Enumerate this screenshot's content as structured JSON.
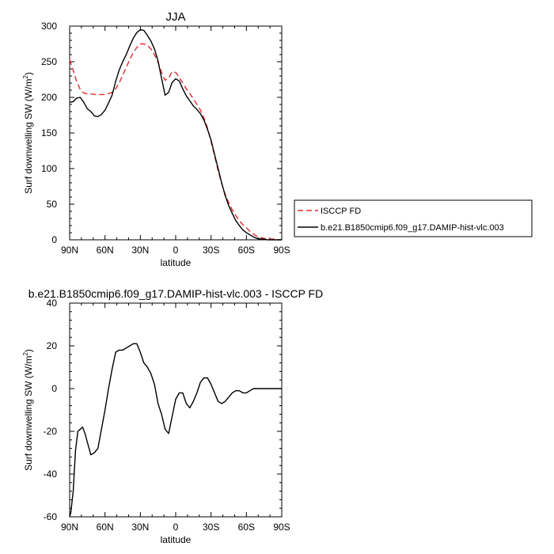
{
  "chart_data": [
    {
      "type": "line",
      "title": "JJA",
      "xlabel": "latitude",
      "ylabel": "Surf downwelling SW (W/m²)",
      "ylabel_base": "Surf downwelling SW (W/m",
      "ylabel_sup": "2",
      "ylabel_end": ")",
      "xlim": [
        90,
        -90
      ],
      "ylim": [
        0,
        300
      ],
      "x_ticks": [
        90,
        60,
        30,
        0,
        -30,
        -60,
        -90
      ],
      "x_tick_labels": [
        "90N",
        "60N",
        "30N",
        "0",
        "30S",
        "60S",
        "90S"
      ],
      "y_ticks": [
        0,
        50,
        100,
        150,
        200,
        250,
        300
      ],
      "y_tick_labels": [
        "0",
        "50",
        "100",
        "150",
        "200",
        "250",
        "300"
      ],
      "legend_position": "right",
      "series": [
        {
          "name": "ISCCP FD",
          "color": "#e8282a",
          "dashed": true,
          "x": [
            90,
            87,
            84,
            81,
            78,
            75,
            72,
            69,
            66,
            63,
            60,
            57,
            54,
            51,
            48,
            45,
            42,
            39,
            36,
            33,
            30,
            27,
            24,
            21,
            18,
            15,
            12,
            9,
            6,
            3,
            0,
            -3,
            -6,
            -9,
            -12,
            -15,
            -18,
            -21,
            -24,
            -27,
            -30,
            -33,
            -36,
            -39,
            -42,
            -45,
            -48,
            -51,
            -54,
            -57,
            -60,
            -63,
            -66,
            -69,
            -72,
            -75,
            -78,
            -81,
            -84,
            -87,
            -90
          ],
          "y": [
            253,
            238,
            222,
            211,
            206,
            205,
            205,
            204,
            204,
            204,
            204,
            205,
            207,
            212,
            220,
            231,
            242,
            253,
            263,
            270,
            275,
            275,
            273,
            268,
            260,
            249,
            235,
            224,
            227,
            236,
            235,
            228,
            220,
            212,
            205,
            198,
            190,
            182,
            171,
            157,
            138,
            118,
            97,
            79,
            64,
            52,
            42,
            34,
            27,
            21,
            17,
            12,
            8,
            5,
            3,
            2,
            1,
            1,
            1,
            0,
            0
          ]
        },
        {
          "name": "b.e21.B1850cmip6.f09_g17.DAMIP-hist-vlc.003",
          "color": "#000000",
          "dashed": false,
          "x": [
            90,
            87,
            84,
            81,
            78,
            75,
            72,
            69,
            66,
            63,
            60,
            57,
            54,
            51,
            48,
            45,
            42,
            39,
            36,
            33,
            30,
            27,
            24,
            21,
            18,
            15,
            12,
            9,
            6,
            3,
            0,
            -3,
            -6,
            -9,
            -12,
            -15,
            -18,
            -21,
            -24,
            -27,
            -30,
            -33,
            -36,
            -39,
            -42,
            -45,
            -48,
            -51,
            -54,
            -57,
            -60,
            -63,
            -66,
            -69,
            -72,
            -75,
            -78,
            -81,
            -84,
            -87,
            -90
          ],
          "y": [
            193,
            194,
            199,
            200,
            193,
            184,
            180,
            174,
            173,
            176,
            182,
            192,
            203,
            222,
            238,
            250,
            260,
            272,
            283,
            291,
            295,
            294,
            287,
            279,
            268,
            251,
            227,
            203,
            207,
            221,
            226,
            223,
            212,
            202,
            195,
            188,
            183,
            177,
            168,
            155,
            140,
            120,
            100,
            80,
            62,
            48,
            37,
            27,
            20,
            14,
            10,
            7,
            4,
            2,
            1,
            1,
            0,
            0,
            0,
            0,
            0
          ]
        }
      ]
    },
    {
      "type": "line",
      "title": "b.e21.B1850cmip6.f09_g17.DAMIP-hist-vlc.003 - ISCCP FD",
      "xlabel": "latitude",
      "ylabel": "Surf downwelling SW (W/m²)",
      "ylabel_base": "Surf downwelling SW (W/m",
      "ylabel_sup": "2",
      "ylabel_end": ")",
      "xlim": [
        90,
        -90
      ],
      "ylim": [
        -60,
        40
      ],
      "x_ticks": [
        90,
        60,
        30,
        0,
        -30,
        -60,
        -90
      ],
      "x_tick_labels": [
        "90N",
        "60N",
        "30N",
        "0",
        "30S",
        "60S",
        "90S"
      ],
      "y_ticks": [
        -60,
        -40,
        -20,
        0,
        20,
        40
      ],
      "y_tick_labels": [
        "-60",
        "-40",
        "-20",
        "0",
        "20",
        "40"
      ],
      "series": [
        {
          "color": "#000000",
          "dashed": false,
          "x": [
            90,
            89,
            87,
            85,
            83,
            81,
            79,
            77,
            75,
            72,
            69,
            66,
            63,
            60,
            57,
            54,
            51,
            48,
            45,
            42,
            39,
            36,
            33,
            30,
            27,
            24,
            21,
            18,
            15,
            12,
            9,
            6,
            3,
            0,
            -3,
            -6,
            -9,
            -12,
            -15,
            -18,
            -21,
            -24,
            -27,
            -30,
            -33,
            -36,
            -39,
            -42,
            -45,
            -48,
            -51,
            -54,
            -57,
            -60,
            -63,
            -66,
            -69,
            -72,
            -75,
            -78,
            -81,
            -84,
            -87,
            -90
          ],
          "y": [
            -60,
            -58,
            -48,
            -29,
            -20,
            -19,
            -18,
            -21,
            -25,
            -31,
            -30,
            -28,
            -19,
            -10,
            0,
            9,
            17,
            18,
            18,
            19,
            20,
            21,
            21,
            17,
            12,
            10,
            7,
            2,
            -7,
            -12,
            -19,
            -21,
            -13,
            -5,
            -2,
            -2,
            -7,
            -9,
            -6,
            -2,
            3,
            5,
            5,
            2,
            -2,
            -6,
            -7,
            -6,
            -4,
            -2,
            -1,
            -1,
            -2,
            -2,
            -1,
            0,
            0,
            0,
            0,
            0,
            0,
            0,
            0,
            0
          ]
        }
      ]
    }
  ],
  "legend": [
    {
      "label": "ISCCP FD",
      "color": "#e8282a",
      "dashed": true
    },
    {
      "label": "b.e21.B1850cmip6.f09_g17.DAMIP-hist-vlc.003",
      "color": "#000000",
      "dashed": false
    }
  ]
}
